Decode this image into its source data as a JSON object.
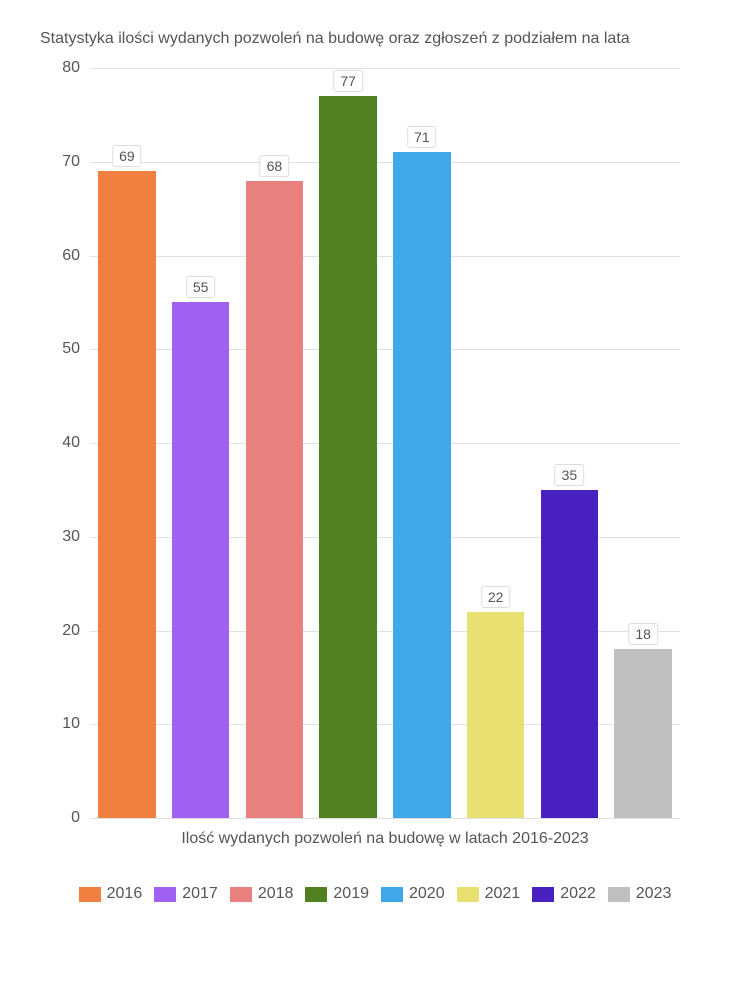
{
  "chart": {
    "type": "bar",
    "title": "Statystyka ilości wydanych pozwoleń na budowę oraz zgłoszeń z podziałem na lata",
    "x_axis_label": "Ilość wydanych pozwoleń na budowę w latach 2016-2023",
    "ylim": [
      0,
      80
    ],
    "ytick_step": 10,
    "yticks": [
      0,
      10,
      20,
      30,
      40,
      50,
      60,
      70,
      80
    ],
    "categories": [
      "2016",
      "2017",
      "2018",
      "2019",
      "2020",
      "2021",
      "2022",
      "2023"
    ],
    "values": [
      69,
      55,
      68,
      77,
      71,
      22,
      35,
      18
    ],
    "bar_colors": [
      "#f08040",
      "#a060f0",
      "#e88080",
      "#508020",
      "#40a8e8",
      "#e8e070",
      "#4820c0",
      "#c0c0c0"
    ],
    "background_color": "#ffffff",
    "grid_color": "#e0e0e0",
    "text_color": "#555555",
    "bar_width": 0.78,
    "title_fontsize": 16,
    "label_fontsize": 16,
    "bar_label_fontsize": 14
  }
}
